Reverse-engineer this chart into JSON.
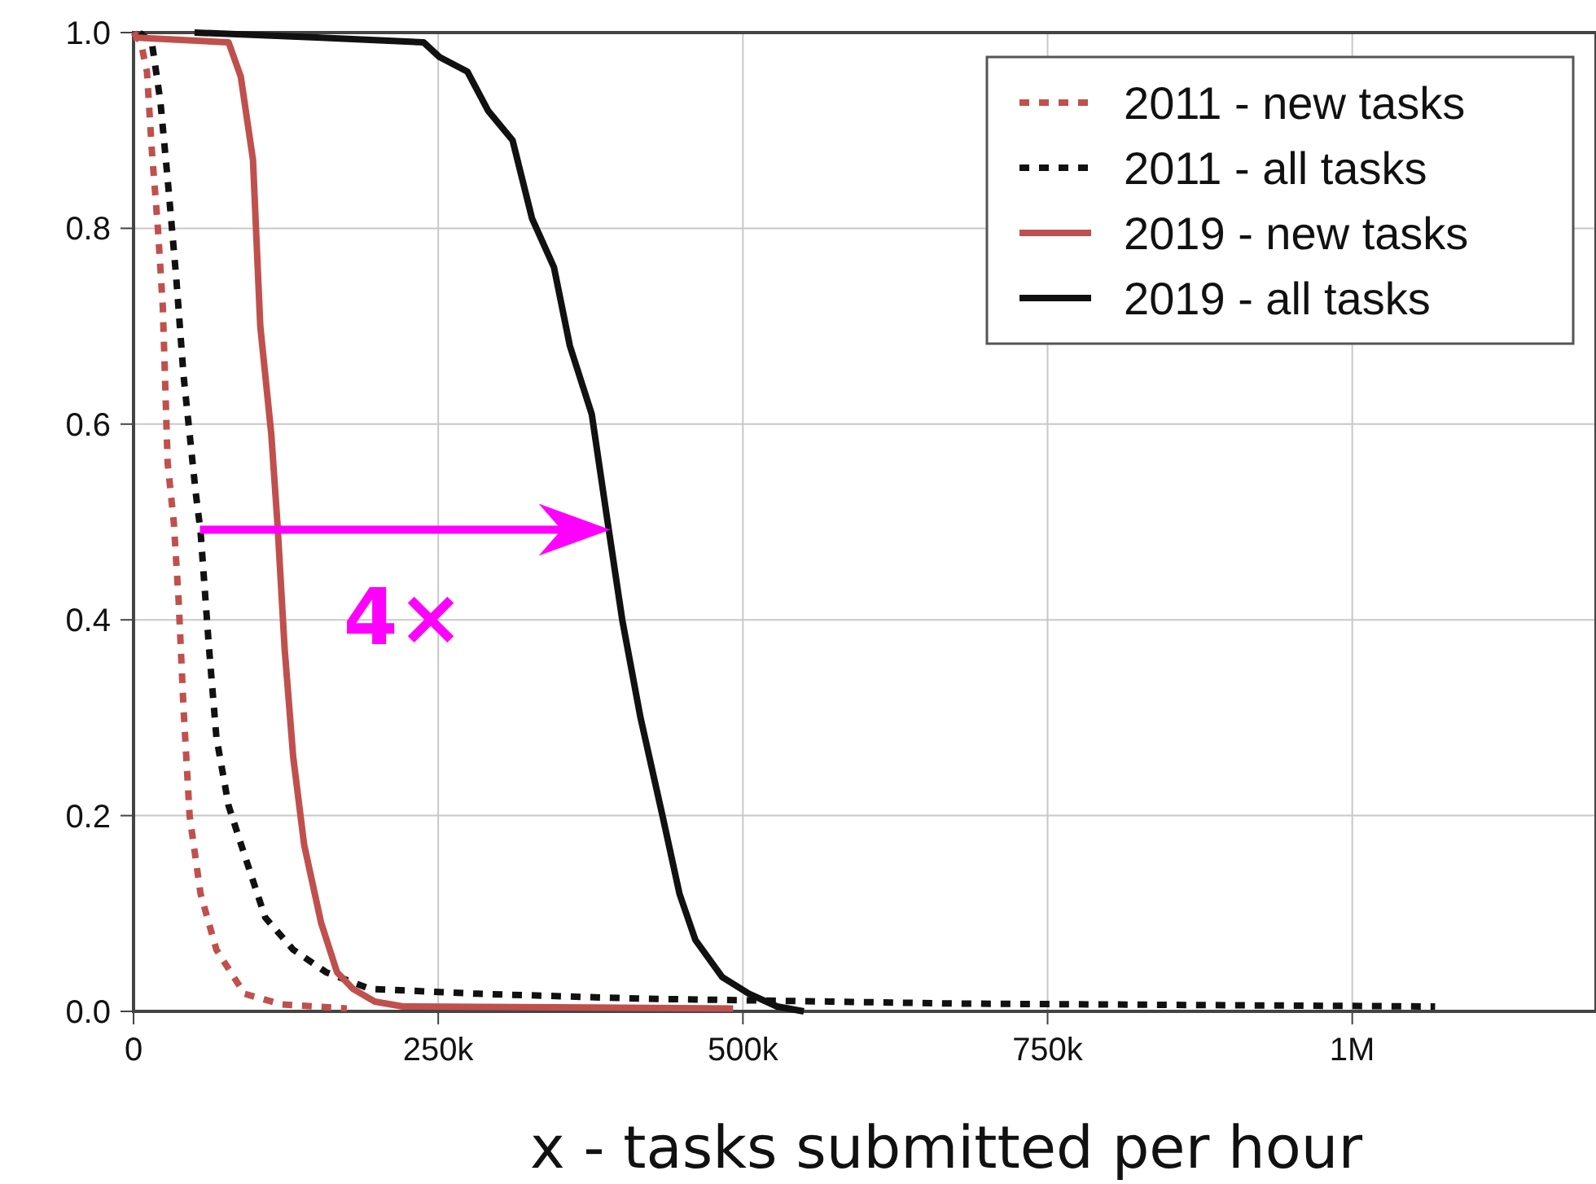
{
  "chart_data": {
    "type": "line",
    "xlabel": "x - tasks submitted per hour",
    "xlim": [
      0,
      1200000
    ],
    "xticks": [
      {
        "value": 0,
        "label": "0"
      },
      {
        "value": 250000,
        "label": "250k"
      },
      {
        "value": 500000,
        "label": "500k"
      },
      {
        "value": 750000,
        "label": "750k"
      },
      {
        "value": 1000000,
        "label": "1M"
      }
    ],
    "ylim": [
      0,
      1
    ],
    "yticks": [
      {
        "value": 0,
        "label": "0.0"
      },
      {
        "value": 0.2,
        "label": "0.2"
      },
      {
        "value": 0.4,
        "label": "0.4"
      },
      {
        "value": 0.6,
        "label": "0.6"
      },
      {
        "value": 0.8,
        "label": "0.8"
      },
      {
        "value": 1,
        "label": "1.0"
      }
    ],
    "grid": true,
    "legend": "top right",
    "marker": "none",
    "annotations": [
      "4×"
    ],
    "series": [
      {
        "name": "2011 - new tasks",
        "color": "#c0504d",
        "line_style": "dotted",
        "x": [
          0,
          6000,
          11000,
          15000,
          20000,
          24000,
          26000,
          28000,
          33000,
          37000,
          41000,
          46000,
          55000,
          68000,
          91000,
          122000,
          175000
        ],
        "values": [
          1,
          0.99,
          0.96,
          0.88,
          0.8,
          0.72,
          0.64,
          0.56,
          0.5,
          0.42,
          0.31,
          0.2,
          0.12,
          0.063,
          0.018,
          0.007,
          0.003
        ]
      },
      {
        "name": "2011 - all tasks",
        "color": "#111111",
        "line_style": "dotted",
        "x": [
          5000,
          15000,
          22000,
          28000,
          35000,
          41000,
          51000,
          55000,
          62000,
          68000,
          78000,
          91000,
          108000,
          131000,
          158000,
          194000,
          282000,
          416000,
          572000,
          672000,
          1068000
        ],
        "values": [
          1,
          0.99,
          0.93,
          0.85,
          0.75,
          0.65,
          0.53,
          0.49,
          0.37,
          0.28,
          0.21,
          0.16,
          0.096,
          0.063,
          0.04,
          0.023,
          0.018,
          0.013,
          0.01,
          0.008,
          0.005
        ]
      },
      {
        "name": "2019 - new tasks",
        "color": "#c0504d",
        "line_style": "solid",
        "x": [
          0,
          78000,
          88000,
          98000,
          104000,
          113000,
          118000,
          124000,
          131000,
          140000,
          154000,
          167000,
          180000,
          198000,
          221000,
          492000
        ],
        "values": [
          0.995,
          0.99,
          0.955,
          0.87,
          0.7,
          0.59,
          0.5,
          0.37,
          0.26,
          0.17,
          0.09,
          0.04,
          0.023,
          0.01,
          0.005,
          0.003
        ]
      },
      {
        "name": "2019 - all tasks",
        "color": "#111111",
        "line_style": "solid",
        "x": [
          50000,
          150000,
          238000,
          251000,
          274000,
          291000,
          311000,
          327000,
          345000,
          358000,
          376000,
          389000,
          401000,
          416000,
          434000,
          448000,
          461000,
          483000,
          505000,
          528000,
          550000
        ],
        "values": [
          1,
          0.995,
          0.99,
          0.975,
          0.96,
          0.92,
          0.89,
          0.81,
          0.76,
          0.68,
          0.61,
          0.5,
          0.4,
          0.3,
          0.2,
          0.12,
          0.073,
          0.035,
          0.018,
          0.005,
          0
        ]
      }
    ]
  }
}
